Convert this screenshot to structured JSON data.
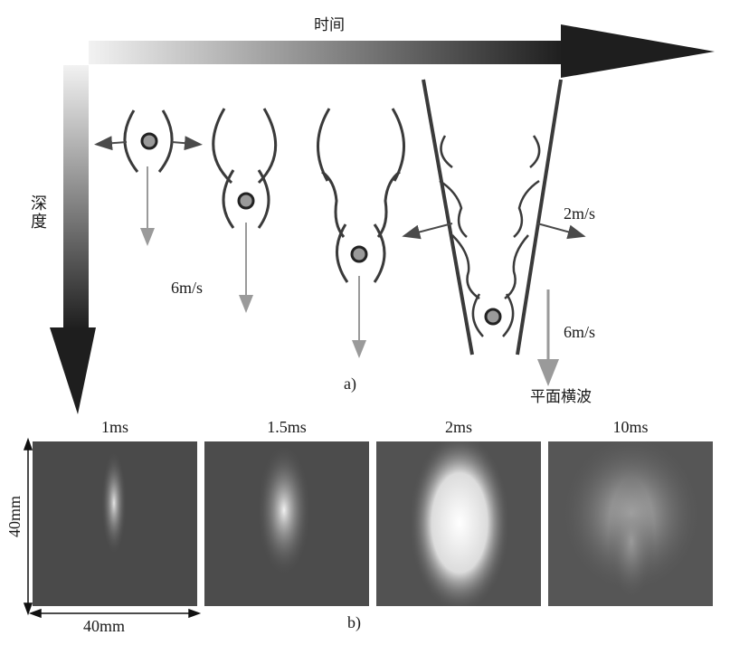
{
  "part_a": {
    "time_axis_label": "时间",
    "depth_axis_label": "深度",
    "speed_down_1": "6m/s",
    "speed_down_2": "6m/s",
    "speed_lateral": "2m/s",
    "plane_wave_label": "平面横波",
    "subfig_label": "a)"
  },
  "part_b": {
    "panels": [
      {
        "time": "1ms",
        "brightness": 0.35
      },
      {
        "time": "1.5ms",
        "brightness": 0.6
      },
      {
        "time": "2ms",
        "brightness": 0.85
      },
      {
        "time": "10ms",
        "brightness": 0.55
      }
    ],
    "height_label": "40mm",
    "width_label": "40mm",
    "subfig_label": "b)"
  },
  "colors": {
    "curve": "#3a3a3a",
    "arrow_gray": "#9a9a9a",
    "dot_fill": "#9a9a9a"
  }
}
